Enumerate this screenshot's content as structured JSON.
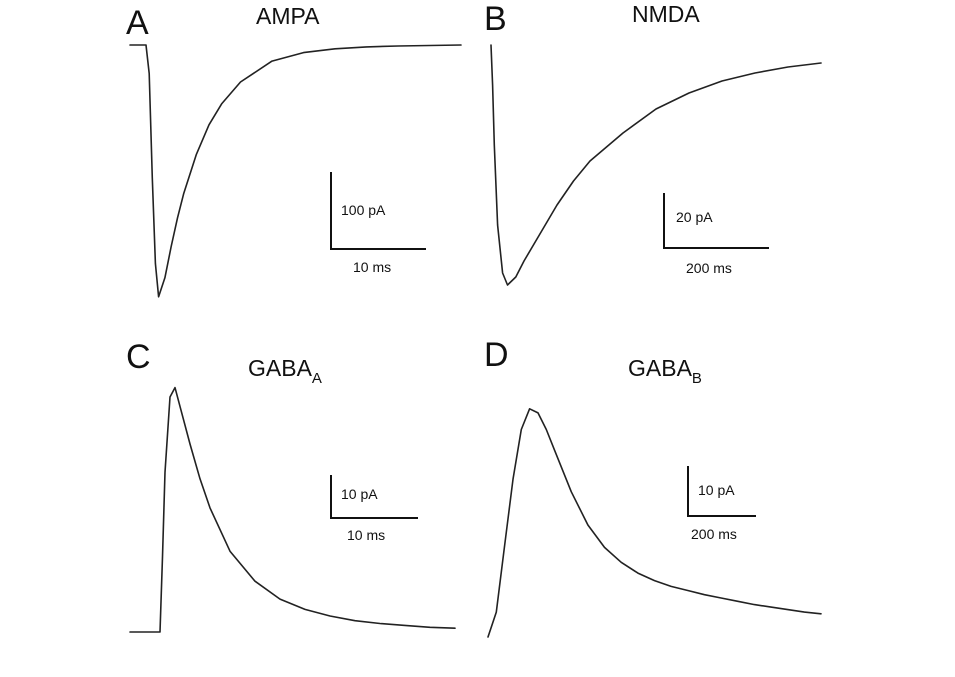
{
  "chart_data": [
    {
      "type": "line",
      "panel": "A",
      "title": "AMPA",
      "title_sub": "",
      "series": [
        {
          "x": [
            0,
            0.5,
            1,
            1.5,
            2,
            3,
            4,
            5,
            6,
            8,
            10,
            12,
            15,
            20,
            25,
            30,
            35,
            40,
            45,
            50
          ],
          "values": [
            0,
            -30,
            -140,
            -230,
            -265,
            -245,
            -212,
            -182,
            -156,
            -115,
            -84,
            -62,
            -39,
            -17,
            -8,
            -4,
            -2,
            -1,
            -0.5,
            0
          ]
        }
      ],
      "scale_bars": {
        "vertical_label": "100 pA",
        "horizontal_label": "10 ms"
      }
    },
    {
      "type": "line",
      "panel": "B",
      "title": "NMDA",
      "title_sub": "",
      "series": [
        {
          "x": [
            0,
            5,
            10,
            20,
            35,
            50,
            75,
            100,
            150,
            200,
            250,
            300,
            400,
            500,
            600,
            700,
            800,
            900,
            1000
          ],
          "values": [
            0,
            -10,
            -25,
            -45,
            -57,
            -60,
            -58,
            -54,
            -47,
            -40,
            -34,
            -29,
            -22,
            -16,
            -12,
            -9,
            -7,
            -5.5,
            -4.5
          ]
        }
      ],
      "scale_bars": {
        "vertical_label": "20 pA",
        "horizontal_label": "200 ms"
      }
    },
    {
      "type": "line",
      "panel": "C",
      "title": "GABA",
      "title_sub": "A",
      "series": [
        {
          "x": [
            0,
            6,
            6.5,
            7,
            8,
            9,
            10,
            12,
            14,
            16,
            20,
            25,
            30,
            35,
            40,
            45,
            50,
            55,
            60,
            65
          ],
          "values": [
            0,
            0,
            8,
            17,
            25,
            26,
            24,
            20,
            16.3,
            13.2,
            8.6,
            5.4,
            3.5,
            2.4,
            1.7,
            1.2,
            0.9,
            0.7,
            0.5,
            0.4
          ]
        }
      ],
      "scale_bars": {
        "vertical_label": "10 pA",
        "horizontal_label": "10 ms"
      }
    },
    {
      "type": "line",
      "panel": "D",
      "title": "GABA",
      "title_sub": "B",
      "series": [
        {
          "x": [
            0,
            25,
            50,
            75,
            100,
            125,
            150,
            175,
            200,
            250,
            300,
            350,
            400,
            450,
            500,
            550,
            600,
            650,
            700,
            750,
            800,
            850,
            900,
            950,
            1000
          ],
          "values": [
            0,
            3,
            11,
            19,
            25,
            27.5,
            27,
            25,
            22.5,
            17.5,
            13.5,
            10.8,
            9,
            7.7,
            6.8,
            6.1,
            5.6,
            5.1,
            4.7,
            4.3,
            3.9,
            3.6,
            3.3,
            3,
            2.8
          ]
        }
      ],
      "scale_bars": {
        "vertical_label": "10 pA",
        "horizontal_label": "200 ms"
      }
    }
  ]
}
